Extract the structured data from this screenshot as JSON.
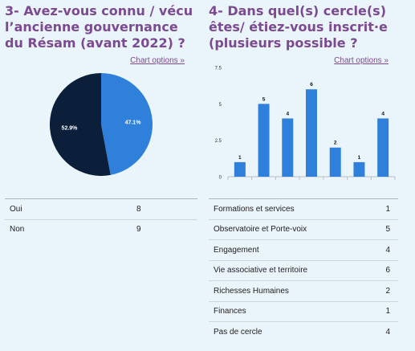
{
  "left": {
    "title": "3- Avez-vous connu / vécu l’ancienne gouvernance du Résam (avant 2022) ?",
    "chart_options": "Chart options »",
    "rows": [
      {
        "label": "Oui",
        "value": "8"
      },
      {
        "label": "Non",
        "value": "9"
      }
    ]
  },
  "right": {
    "title": "4- Dans quel(s) cercle(s) êtes/ étiez-vous inscrit·e (plusieurs possible ?",
    "chart_options": "Chart options »",
    "rows": [
      {
        "label": "Formations et services",
        "value": "1"
      },
      {
        "label": "Observatoire et Porte-voix",
        "value": "5"
      },
      {
        "label": "Engagement",
        "value": "4"
      },
      {
        "label": "Vie associative et territoire",
        "value": "6"
      },
      {
        "label": "Richesses Humaines",
        "value": "2"
      },
      {
        "label": "Finances",
        "value": "1"
      },
      {
        "label": "Pas de cercle",
        "value": "4"
      }
    ]
  },
  "chart_data": [
    {
      "type": "pie",
      "categories": [
        "Oui",
        "Non"
      ],
      "values": [
        8,
        9
      ],
      "slice_labels": [
        "47.1%",
        "52.9%"
      ],
      "colors": [
        "#2f80db",
        "#0b1f3a"
      ]
    },
    {
      "type": "bar",
      "categories": [
        "Formations et services",
        "Observatoire et Porte-voix",
        "Engagement",
        "Vie associative et territoire",
        "Richesses Humaines",
        "Finances",
        "Pas de cercle"
      ],
      "values": [
        1,
        5,
        4,
        6,
        2,
        1,
        4
      ],
      "ylim": [
        0,
        7.5
      ],
      "yticks": [
        "0",
        "2.5",
        "5",
        "7.5"
      ],
      "color": "#2f80db",
      "grid": false
    }
  ]
}
